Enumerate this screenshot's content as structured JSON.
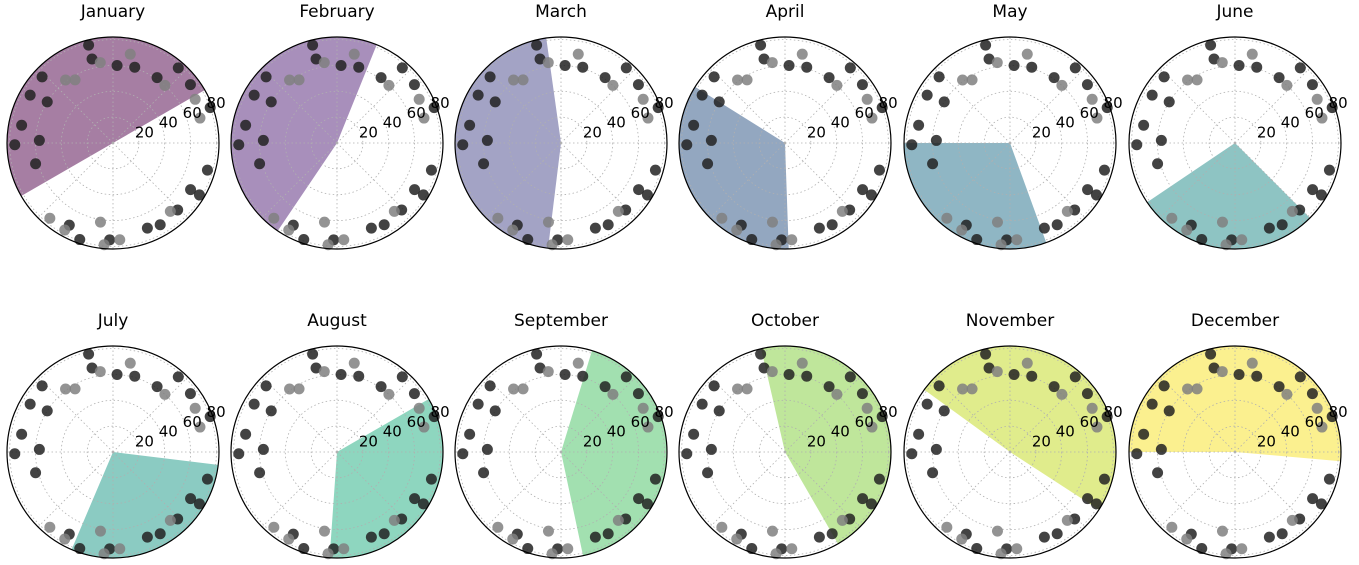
{
  "chart_data": [
    {
      "type": "polar",
      "title": "January",
      "wedge": {
        "theta": [
          30,
          210
        ],
        "r": 82,
        "color": "#a67ea3"
      }
    },
    {
      "type": "polar",
      "title": "February",
      "wedge": {
        "theta": [
          68,
          236
        ],
        "r": 82,
        "color": "#a88fbb"
      }
    },
    {
      "type": "polar",
      "title": "March",
      "wedge": {
        "theta": [
          98,
          263
        ],
        "r": 82,
        "color": "#a3a3c5"
      }
    },
    {
      "type": "polar",
      "title": "April",
      "wedge": {
        "theta": [
          148,
          272
        ],
        "r": 82,
        "color": "#93a7c0"
      }
    },
    {
      "type": "polar",
      "title": "May",
      "wedge": {
        "theta": [
          180,
          290
        ],
        "r": 82,
        "color": "#8fb6c4"
      }
    },
    {
      "type": "polar",
      "title": "June",
      "wedge": {
        "theta": [
          214,
          315
        ],
        "r": 82,
        "color": "#8ec4c3"
      }
    },
    {
      "type": "polar",
      "title": "July",
      "wedge": {
        "theta": [
          247,
          353
        ],
        "r": 82,
        "color": "#8bcbc2"
      }
    },
    {
      "type": "polar",
      "title": "August",
      "wedge": {
        "theta": [
          266,
          390
        ],
        "r": 82,
        "color": "#8ed6bf"
      }
    },
    {
      "type": "polar",
      "title": "September",
      "wedge": {
        "theta": [
          282,
          433
        ],
        "r": 82,
        "color": "#a2e0b0"
      }
    },
    {
      "type": "polar",
      "title": "October",
      "wedge": {
        "theta": [
          300,
          463
        ],
        "r": 82,
        "color": "#bfe69b"
      }
    },
    {
      "type": "polar",
      "title": "November",
      "wedge": {
        "theta": [
          327,
          504
        ],
        "r": 82,
        "color": "#e0ec8c"
      }
    },
    {
      "type": "polar",
      "title": "December",
      "wedge": {
        "theta": [
          355,
          540
        ],
        "r": 82,
        "color": "#fbf08f"
      }
    }
  ],
  "shared": {
    "rlim": [
      0,
      82
    ],
    "rticks": [
      20,
      40,
      60,
      80
    ],
    "thetagrid": [
      0,
      45,
      90,
      135,
      180,
      225,
      270,
      315
    ],
    "series": [
      {
        "color": "#222222",
        "theta": [
          104,
          104,
          87,
          74,
          56,
          49,
          37,
          137,
          148,
          150,
          169,
          181,
          178,
          195,
          242,
          251,
          268,
          292,
          300,
          314,
          329,
          329,
          344,
          20
        ],
        "r": [
          78,
          67,
          60,
          61,
          61,
          77,
          75,
          75,
          60,
          74,
          72,
          76,
          57,
          62,
          72,
          79,
          75,
          71,
          73,
          72,
          70,
          78,
          76,
          80
        ]
      },
      {
        "color": "#808080",
        "theta": [
          127,
          121,
          99,
          79,
          48,
          28,
          16,
          230,
          241,
          261,
          274,
          265,
          310
        ],
        "r": [
          61,
          57,
          63,
          70,
          60,
          72,
          70,
          76,
          77,
          62,
          75,
          79,
          69
        ]
      }
    ]
  }
}
